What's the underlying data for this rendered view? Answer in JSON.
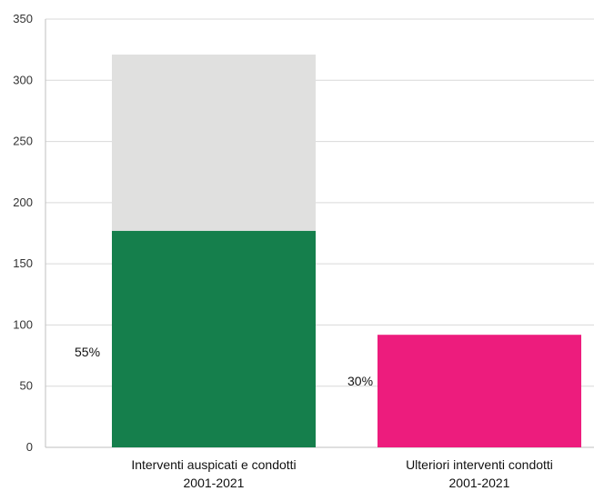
{
  "chart_data": {
    "type": "bar",
    "title": "",
    "xlabel": "",
    "ylabel": "",
    "ylim": [
      0,
      350
    ],
    "yticks": [
      0,
      50,
      100,
      150,
      200,
      250,
      300,
      350
    ],
    "grid": true,
    "legend": "none",
    "categories": [
      [
        "Interventi auspicati e condotti",
        "2001-2021"
      ],
      [
        "Ulteriori interventi condotti",
        "2001-2021"
      ]
    ],
    "bars": [
      {
        "segments": [
          {
            "value": 177,
            "color": "#157f4c"
          },
          {
            "value": 144,
            "color": "#e0e0df"
          }
        ],
        "total": 321,
        "percent_label": "55%"
      },
      {
        "segments": [
          {
            "value": 92,
            "color": "#ed1c7d"
          }
        ],
        "total": 92,
        "percent_label": "30%"
      }
    ]
  }
}
